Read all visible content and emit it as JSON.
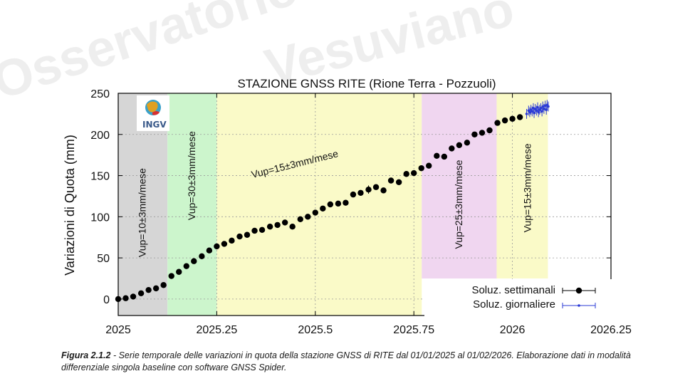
{
  "watermark": {
    "left": "Osservatorio",
    "center": "Vesuviano"
  },
  "logo": {
    "text": "INGV"
  },
  "caption": {
    "label": "Figura 2.1.2",
    "text": " - Serie temporale delle variazioni in quota della stazione GNSS di RITE dal 01/01/2025 al 01/02/2026. Elaborazione dati in modalità differenziale singola baseline con software GNSS Spider."
  },
  "chart_data": {
    "type": "scatter",
    "title": "STAZIONE GNSS RITE (Rione Terra - Pozzuoli)",
    "xlabel": "",
    "ylabel": "Variazioni di Quota (mm)",
    "xlim": [
      2025,
      2026.25
    ],
    "ylim": [
      -20,
      250
    ],
    "x_ticks": [
      "2025",
      "2025.25",
      "2025.5",
      "2025.75",
      "2026",
      "2026.25"
    ],
    "y_ticks": [
      "0",
      "50",
      "100",
      "150",
      "200",
      "250"
    ],
    "grid": true,
    "legend_position": "bottom-right",
    "bands": [
      {
        "x_start": 2025.0,
        "x_end": 2025.125,
        "color": "#d6d6d6",
        "label": "Vup=10±3mm/mese"
      },
      {
        "x_start": 2025.125,
        "x_end": 2025.25,
        "color": "#ccf5cc",
        "label": "Vup=30±3mm/mese"
      },
      {
        "x_start": 2025.25,
        "x_end": 2025.77,
        "color": "#fafac8",
        "label": "Vup=15±3mm/mese"
      },
      {
        "x_start": 2025.77,
        "x_end": 2025.96,
        "color": "#f0d6f0",
        "label": "Vup=25±3mm/mese"
      },
      {
        "x_start": 2025.96,
        "x_end": 2026.09,
        "color": "#fafac8",
        "label": "Vup=15±3mm/mese"
      }
    ],
    "series": [
      {
        "name": "Soluz. settimanali",
        "color": "#000000",
        "x": [
          2025.0,
          2025.019,
          2025.038,
          2025.058,
          2025.077,
          2025.096,
          2025.115,
          2025.135,
          2025.154,
          2025.173,
          2025.192,
          2025.212,
          2025.231,
          2025.25,
          2025.269,
          2025.288,
          2025.308,
          2025.327,
          2025.346,
          2025.365,
          2025.385,
          2025.404,
          2025.423,
          2025.442,
          2025.462,
          2025.481,
          2025.5,
          2025.519,
          2025.538,
          2025.558,
          2025.577,
          2025.596,
          2025.615,
          2025.635,
          2025.654,
          2025.673,
          2025.692,
          2025.712,
          2025.731,
          2025.75,
          2025.769,
          2025.788,
          2025.808,
          2025.827,
          2025.846,
          2025.865,
          2025.885,
          2025.904,
          2025.923,
          2025.942,
          2025.962,
          2025.981,
          2026.0,
          2026.019
        ],
        "y": [
          0,
          1,
          3,
          7,
          11,
          13,
          17,
          28,
          33,
          40,
          46,
          52,
          59,
          64,
          67,
          71,
          76,
          78,
          83,
          84,
          88,
          90,
          93,
          88,
          97,
          100,
          105,
          110,
          115,
          116,
          117,
          127,
          129,
          133,
          136,
          132,
          144,
          142,
          152,
          153,
          159,
          162,
          174,
          173,
          183,
          187,
          190,
          200,
          202,
          205,
          214,
          217,
          219,
          221
        ],
        "error": [
          3,
          3,
          3,
          3,
          3,
          3,
          3,
          3,
          3,
          3,
          3,
          3,
          3,
          3,
          3,
          3,
          3,
          3,
          3,
          3,
          3,
          3,
          3,
          3,
          3,
          3,
          3,
          3,
          3,
          3,
          3,
          3,
          3,
          5,
          3,
          3,
          3,
          3,
          3,
          3,
          3,
          3,
          3,
          3,
          3,
          3,
          3,
          3,
          3,
          3,
          3,
          3,
          3,
          3
        ]
      },
      {
        "name": "Soluz. giornaliere",
        "color": "#2b3bd6",
        "x": [
          2026.036,
          2026.041,
          2026.044,
          2026.047,
          2026.05,
          2026.053,
          2026.055,
          2026.058,
          2026.061,
          2026.064,
          2026.066,
          2026.069,
          2026.072,
          2026.075,
          2026.077,
          2026.08,
          2026.083,
          2026.086,
          2026.088,
          2026.091
        ],
        "y": [
          225,
          229,
          227,
          230,
          228,
          232,
          226,
          231,
          229,
          233,
          227,
          230,
          232,
          228,
          234,
          231,
          235,
          230,
          236,
          234
        ],
        "error": [
          6,
          6,
          6,
          6,
          6,
          6,
          6,
          6,
          6,
          6,
          6,
          6,
          6,
          6,
          6,
          6,
          6,
          6,
          6,
          6
        ]
      }
    ]
  }
}
